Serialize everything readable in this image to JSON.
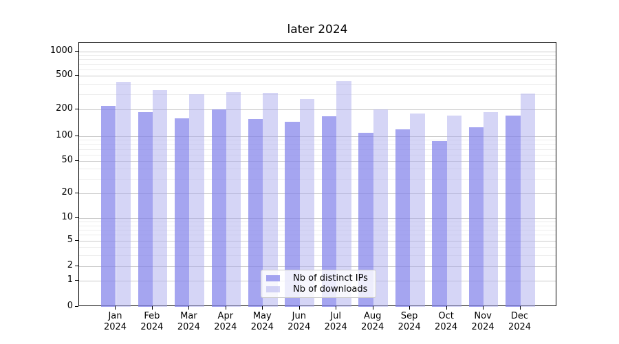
{
  "title": "later 2024",
  "chart_data": {
    "type": "bar",
    "title": "later 2024",
    "categories": [
      "Jan 2024",
      "Feb 2024",
      "Mar 2024",
      "Apr 2024",
      "May 2024",
      "Jun 2024",
      "Jul 2024",
      "Aug 2024",
      "Sep 2024",
      "Oct 2024",
      "Nov 2024",
      "Dec 2024"
    ],
    "x_tick_month_lines": [
      "Jan",
      "Feb",
      "Mar",
      "Apr",
      "May",
      "Jun",
      "Jul",
      "Aug",
      "Sep",
      "Oct",
      "Nov",
      "Dec"
    ],
    "x_tick_year_line": "2024",
    "series": [
      {
        "name": "Nb of distinct IPs",
        "color": "#a5a5f0",
        "values": [
          220,
          185,
          160,
          202,
          155,
          145,
          168,
          110,
          120,
          87,
          127,
          170
        ]
      },
      {
        "name": "Nb of downloads",
        "color": "#d6d6f7",
        "values": [
          420,
          335,
          300,
          320,
          315,
          265,
          430,
          202,
          180,
          170,
          185,
          305
        ]
      }
    ],
    "yscale": "symlog",
    "yticks": [
      0,
      1,
      2,
      5,
      10,
      20,
      50,
      100,
      200,
      500,
      1000
    ],
    "ylim": [
      0,
      1290
    ],
    "xlabel": "",
    "ylabel": "",
    "grid": "both",
    "legend_position": "lower center"
  },
  "legend": {
    "items": [
      "Nb of distinct IPs",
      "Nb of downloads"
    ]
  }
}
